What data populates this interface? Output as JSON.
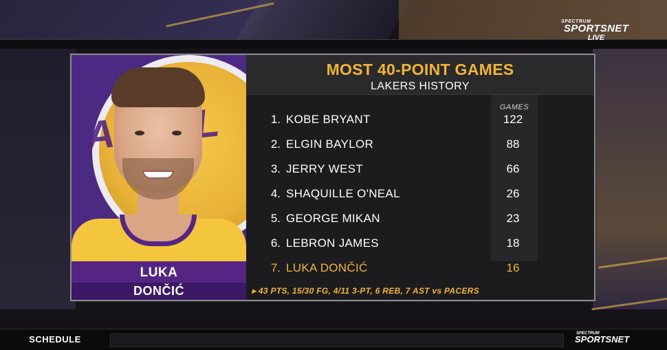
{
  "network": {
    "brand_small": "SPECTRUM",
    "brand_big": "SPORTSNET",
    "brand_live": "LIVE"
  },
  "graphic": {
    "title": "MOST 40-POINT GAMES",
    "subtitle": "LAKERS HISTORY",
    "games_header": "GAMES",
    "player_first_name": "LUKA",
    "player_last_name": "DONČIĆ",
    "rows": [
      {
        "rank": "1.",
        "player": "KOBE BRYANT",
        "games": "122"
      },
      {
        "rank": "2.",
        "player": "ELGIN BAYLOR",
        "games": "88"
      },
      {
        "rank": "3.",
        "player": "JERRY WEST",
        "games": "66"
      },
      {
        "rank": "4.",
        "player": "SHAQUILLE O'NEAL",
        "games": "26"
      },
      {
        "rank": "5.",
        "player": "GEORGE MIKAN",
        "games": "23"
      },
      {
        "rank": "6.",
        "player": "LEBRON JAMES",
        "games": "18"
      },
      {
        "rank": "7.",
        "player": "LUKA DONČIĆ",
        "games": "16"
      }
    ],
    "footnote": "▸ 43 PTS, 15/30 FG, 4/11 3-PT, 6 REB, 7 AST vs PACERS",
    "colors": {
      "highlight": "#f2b531",
      "lakers_purple": "#552583",
      "lakers_gold": "#f3c63e"
    }
  },
  "ticker": {
    "schedule_label": "SCHEDULE",
    "brand_small": "SPECTRUM",
    "brand_big": "SPORTSNET"
  }
}
